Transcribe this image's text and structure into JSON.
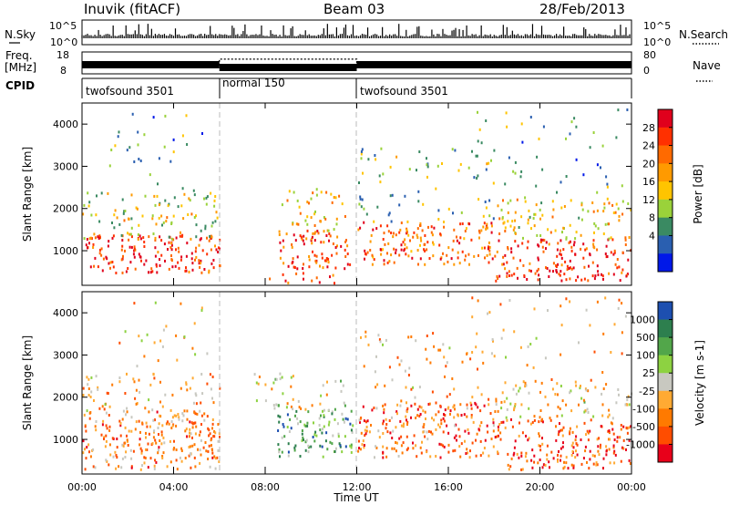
{
  "header": {
    "station": "Inuvik (fitACF)",
    "beam": "Beam 03",
    "date": "28/Feb/2013"
  },
  "noise_panel": {
    "left_label": "N.Sky",
    "right_label": "N.Search",
    "left_ticks": [
      "10^5",
      "10^0"
    ],
    "right_ticks": [
      "10^5",
      "10^0"
    ]
  },
  "freq_panel": {
    "left_label_1": "Freq.",
    "left_label_2": "[MHz]",
    "right_label": "Nave",
    "left_ticks": [
      "18",
      "8"
    ],
    "right_ticks": [
      "80",
      "0"
    ]
  },
  "cpid_panel": {
    "label": "CPID",
    "segments": [
      {
        "label": "twofsound 3501",
        "start": "00:00",
        "end": "06:00"
      },
      {
        "label": "normal 150",
        "start": "06:00",
        "end": "12:00"
      },
      {
        "label": "twofsound 3501",
        "start": "12:00",
        "end": "24:00"
      }
    ]
  },
  "power_panel": {
    "ylabel": "Slant Range [km]",
    "colorbar_label": "Power [dB]",
    "colorbar_ticks": [
      "28",
      "24",
      "20",
      "16",
      "12",
      "8",
      "4"
    ],
    "colorbar_colors": [
      "#e0001c",
      "#ff3000",
      "#ff6a00",
      "#ff9a00",
      "#ffc400",
      "#9ad23a",
      "#3a8a62",
      "#2a5fb0",
      "#0018e8"
    ]
  },
  "velocity_panel": {
    "ylabel": "Slant Range [km]",
    "colorbar_label": "Velocity [m s-1]",
    "colorbar_ticks": [
      "1000",
      "500",
      "100",
      "25",
      "-25",
      "-100",
      "-500",
      "-1000"
    ],
    "colorbar_colors": [
      "#1d4fb0",
      "#2d7f4e",
      "#52a64a",
      "#8dd241",
      "#c8c8c0",
      "#ffaa33",
      "#ff7a00",
      "#ff4d00",
      "#e8001a"
    ]
  },
  "xaxis": {
    "label": "Time UT",
    "ticks": [
      "00:00",
      "04:00",
      "08:00",
      "12:00",
      "16:00",
      "20:00",
      "00:00"
    ]
  },
  "chart_data": {
    "type": "heatmap",
    "title": "Inuvik (fitACF)",
    "subtitle": "Beam 03",
    "date": "28/Feb/2013",
    "xlabel": "Time UT",
    "ylabel": "Slant Range [km]",
    "xlim_hours": [
      0,
      24
    ],
    "ylim_km": [
      180,
      4500
    ],
    "y_ticks": [
      1000,
      2000,
      3000,
      4000
    ],
    "x_ticks_hours": [
      0,
      4,
      8,
      12,
      16,
      20,
      24
    ],
    "cpid_boundaries_hours": [
      6,
      12
    ],
    "grid": false,
    "power_colorbar": {
      "label": "Power [dB]",
      "ticks": [
        4,
        8,
        12,
        16,
        20,
        24,
        28
      ]
    },
    "velocity_colorbar": {
      "label": "Velocity [m s-1]",
      "ticks": [
        -1000,
        -500,
        -100,
        -25,
        25,
        100,
        500,
        1000
      ]
    },
    "nave_segments": [
      {
        "start": 0,
        "end": 6,
        "value": 25
      },
      {
        "start": 6,
        "end": 12,
        "value": 55
      },
      {
        "start": 12,
        "end": 24,
        "value": 25
      }
    ],
    "scatter_regions": [
      {
        "panel": "power",
        "t0": 0.0,
        "t1": 6.0,
        "r0": 500,
        "r1": 1400,
        "level": 0.85,
        "density": 0.9
      },
      {
        "panel": "power",
        "t0": 0.0,
        "t1": 6.0,
        "r0": 1300,
        "r1": 2400,
        "level": 0.45,
        "density": 0.45
      },
      {
        "panel": "power",
        "t0": 1.0,
        "t1": 5.5,
        "r0": 2400,
        "r1": 4300,
        "level": 0.3,
        "density": 0.1
      },
      {
        "panel": "power",
        "t0": 8.5,
        "t1": 11.8,
        "r0": 600,
        "r1": 1500,
        "level": 0.8,
        "density": 0.85
      },
      {
        "panel": "power",
        "t0": 8.7,
        "t1": 11.5,
        "r0": 1500,
        "r1": 2500,
        "level": 0.55,
        "density": 0.45
      },
      {
        "panel": "power",
        "t0": 8.0,
        "t1": 11.0,
        "r0": 250,
        "r1": 500,
        "level": 0.8,
        "density": 0.5
      },
      {
        "panel": "power",
        "t0": 12.0,
        "t1": 18.0,
        "r0": 700,
        "r1": 1700,
        "level": 0.75,
        "density": 0.8
      },
      {
        "panel": "power",
        "t0": 12.0,
        "t1": 18.0,
        "r0": 1700,
        "r1": 3500,
        "level": 0.35,
        "density": 0.2
      },
      {
        "panel": "power",
        "t0": 18.0,
        "t1": 24.0,
        "r0": 300,
        "r1": 1300,
        "level": 0.85,
        "density": 0.8
      },
      {
        "panel": "power",
        "t0": 18.0,
        "t1": 24.0,
        "r0": 1300,
        "r1": 2300,
        "level": 0.55,
        "density": 0.5
      },
      {
        "panel": "power",
        "t0": 17.0,
        "t1": 24.0,
        "r0": 2300,
        "r1": 4400,
        "level": 0.3,
        "density": 0.1
      },
      {
        "panel": "velocity",
        "t0": 0.0,
        "t1": 6.0,
        "r0": 300,
        "r1": 1700,
        "level": 0.3,
        "density": 0.9
      },
      {
        "panel": "velocity",
        "t0": 0.0,
        "t1": 6.0,
        "r0": 1700,
        "r1": 2600,
        "level": 0.35,
        "density": 0.4
      },
      {
        "panel": "velocity",
        "t0": 1.0,
        "t1": 5.5,
        "r0": 2600,
        "r1": 4300,
        "level": 0.4,
        "density": 0.1
      },
      {
        "panel": "velocity",
        "t0": 8.5,
        "t1": 11.8,
        "r0": 600,
        "r1": 1700,
        "level": 0.72,
        "density": 0.85
      },
      {
        "panel": "velocity",
        "t0": 7.5,
        "t1": 11.5,
        "r0": 1700,
        "r1": 2600,
        "level": 0.5,
        "density": 0.4
      },
      {
        "panel": "velocity",
        "t0": 12.0,
        "t1": 18.0,
        "r0": 600,
        "r1": 1900,
        "level": 0.25,
        "density": 0.85
      },
      {
        "panel": "velocity",
        "t0": 12.0,
        "t1": 18.0,
        "r0": 1900,
        "r1": 3600,
        "level": 0.35,
        "density": 0.2
      },
      {
        "panel": "velocity",
        "t0": 18.0,
        "t1": 24.0,
        "r0": 300,
        "r1": 1500,
        "level": 0.2,
        "density": 0.8
      },
      {
        "panel": "velocity",
        "t0": 18.0,
        "t1": 24.0,
        "r0": 1500,
        "r1": 2400,
        "level": 0.45,
        "density": 0.5
      },
      {
        "panel": "velocity",
        "t0": 17.0,
        "t1": 24.0,
        "r0": 2400,
        "r1": 4400,
        "level": 0.35,
        "density": 0.1
      }
    ]
  }
}
